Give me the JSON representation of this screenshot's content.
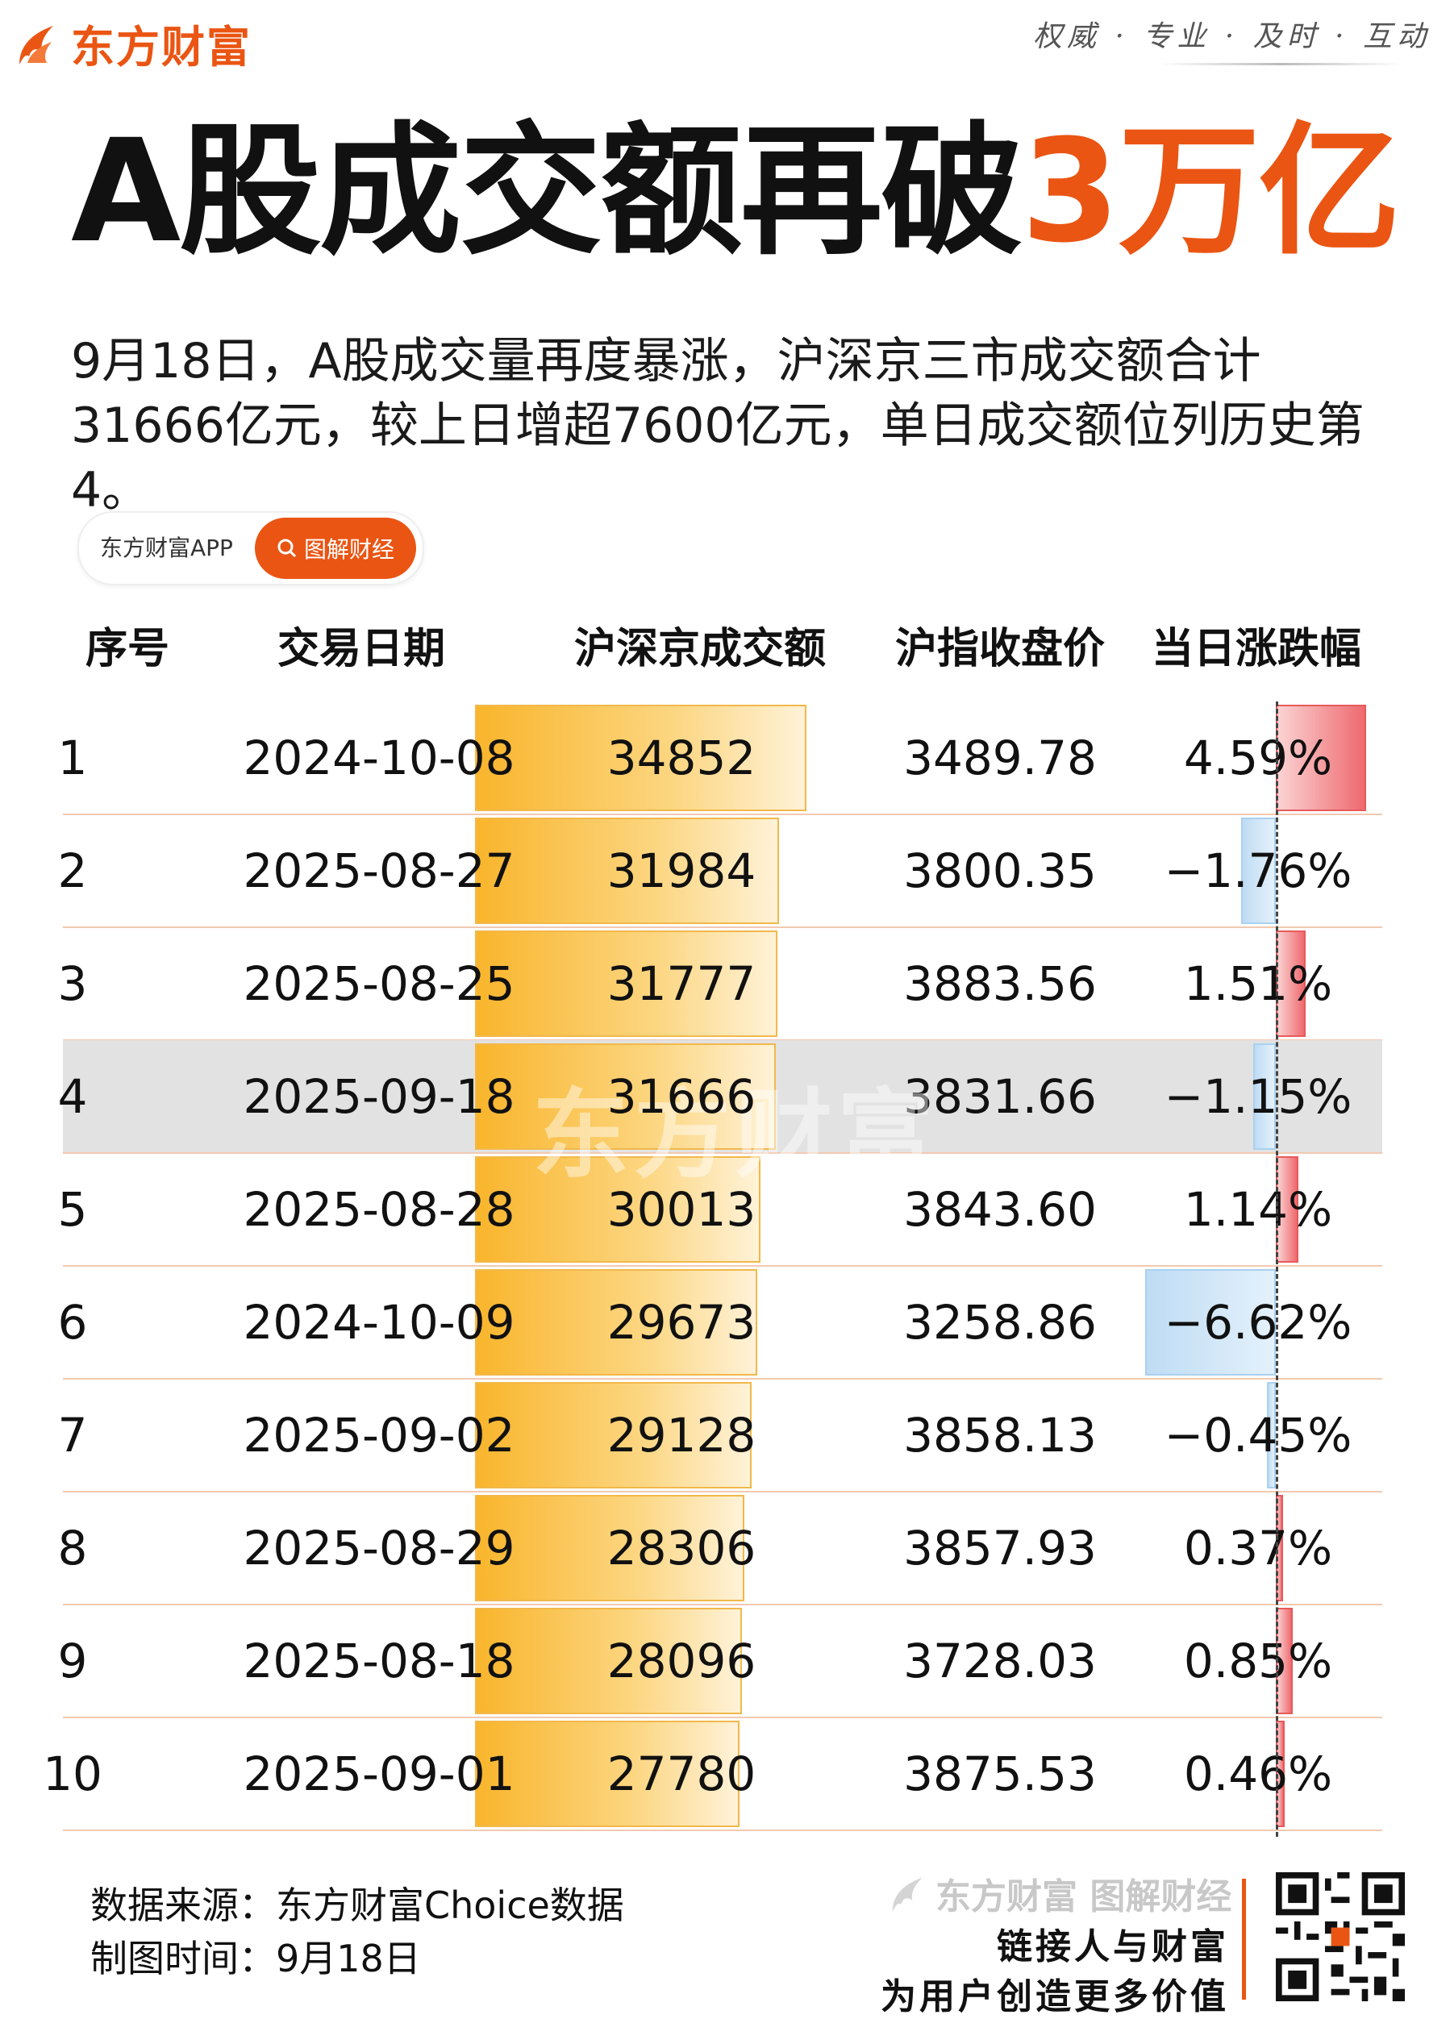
{
  "header": {
    "brand": "东方财富",
    "slogan": "权威 · 专业 · 及时 · 互动"
  },
  "title": {
    "main": "A股成交额再破",
    "highlight": "3万亿"
  },
  "intro": "9月18日，A股成交量再度暴涨，沪深京三市成交额合计31666亿元，较上日增超7600亿元，单日成交额位列历史第4。",
  "tag": {
    "app": "东方财富APP",
    "pill": "图解财经"
  },
  "colors": {
    "accent": "#ea5513",
    "amount_bar": "#f9b52c",
    "up": "#ee6a6f",
    "down": "#a9d1f0",
    "highlight_row": "#e2e2e2"
  },
  "chart_data": {
    "type": "table",
    "columns": [
      "序号",
      "交易日期",
      "沪深京成交额",
      "沪指收盘价",
      "当日涨跌幅"
    ],
    "highlight_rank": 4,
    "rows": [
      {
        "rank": "1",
        "date": "2024-10-08",
        "amount": 34852,
        "amount_text": "34852",
        "close": "3489.78",
        "change": 4.59,
        "change_text": "4.59%"
      },
      {
        "rank": "2",
        "date": "2025-08-27",
        "amount": 31984,
        "amount_text": "31984",
        "close": "3800.35",
        "change": -1.76,
        "change_text": "−1.76%"
      },
      {
        "rank": "3",
        "date": "2025-08-25",
        "amount": 31777,
        "amount_text": "31777",
        "close": "3883.56",
        "change": 1.51,
        "change_text": "1.51%"
      },
      {
        "rank": "4",
        "date": "2025-09-18",
        "amount": 31666,
        "amount_text": "31666",
        "close": "3831.66",
        "change": -1.15,
        "change_text": "−1.15%"
      },
      {
        "rank": "5",
        "date": "2025-08-28",
        "amount": 30013,
        "amount_text": "30013",
        "close": "3843.60",
        "change": 1.14,
        "change_text": "1.14%"
      },
      {
        "rank": "6",
        "date": "2024-10-09",
        "amount": 29673,
        "amount_text": "29673",
        "close": "3258.86",
        "change": -6.62,
        "change_text": "−6.62%"
      },
      {
        "rank": "7",
        "date": "2025-09-02",
        "amount": 29128,
        "amount_text": "29128",
        "close": "3858.13",
        "change": -0.45,
        "change_text": "−0.45%"
      },
      {
        "rank": "8",
        "date": "2025-08-29",
        "amount": 28306,
        "amount_text": "28306",
        "close": "3857.93",
        "change": 0.37,
        "change_text": "0.37%"
      },
      {
        "rank": "9",
        "date": "2025-08-18",
        "amount": 28096,
        "amount_text": "28096",
        "close": "3728.03",
        "change": 0.85,
        "change_text": "0.85%"
      },
      {
        "rank": "10",
        "date": "2025-09-01",
        "amount": 27780,
        "amount_text": "27780",
        "close": "3875.53",
        "change": 0.46,
        "change_text": "0.46%"
      }
    ]
  },
  "watermark": "东方财富",
  "footer": {
    "source": "数据来源：东方财富Choice数据",
    "time": "制图时间：9月18日",
    "brand": "东方财富 图解财经",
    "slogan1": "链接人与财富",
    "slogan2": "为用户创造更多价值"
  }
}
